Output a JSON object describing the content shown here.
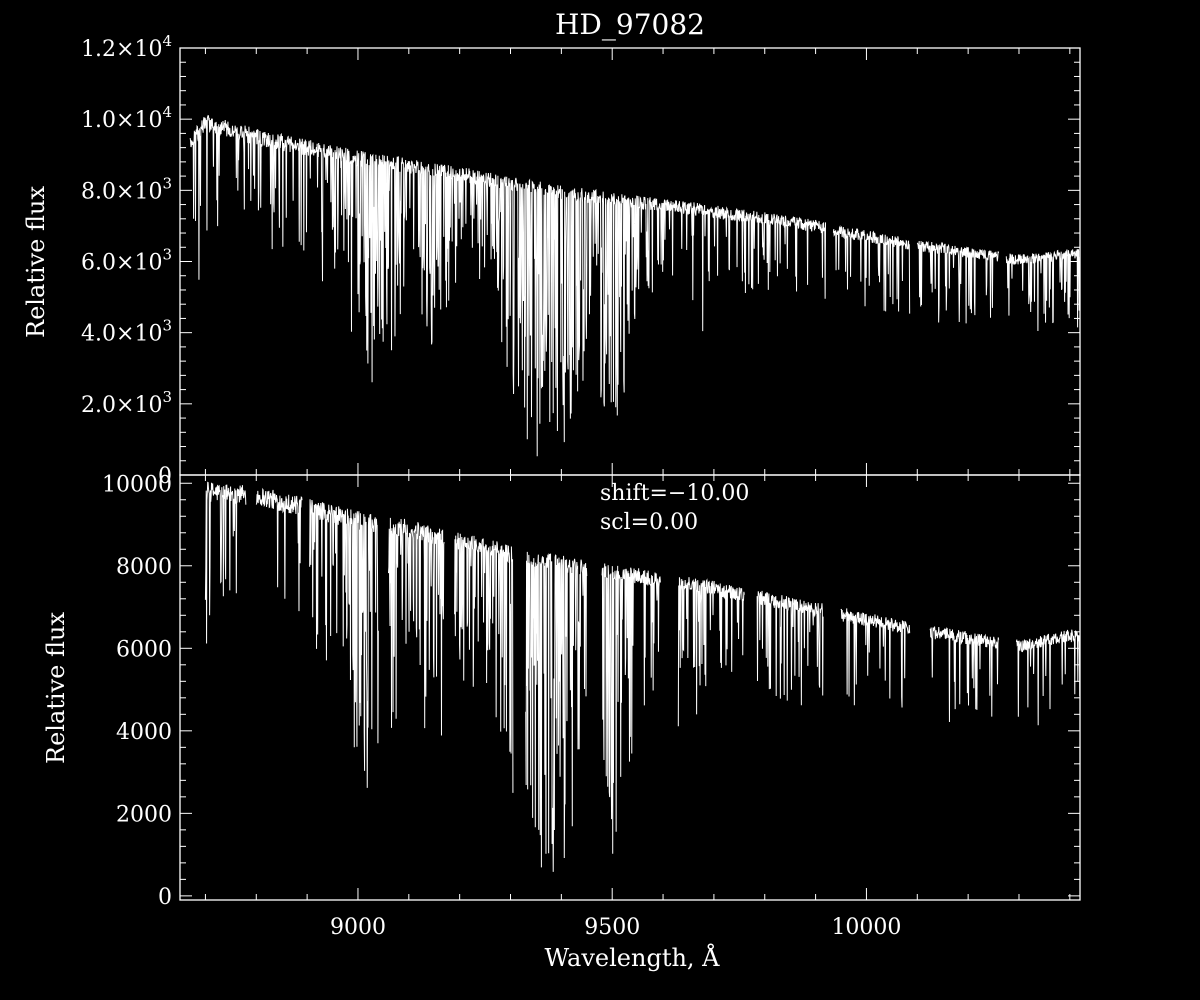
{
  "chart_data": [
    {
      "type": "line",
      "panel": "top",
      "title": "HD_97082",
      "ylabel": "Relative flux",
      "xlim": [
        8650,
        10420
      ],
      "ylim": [
        0,
        12000
      ],
      "yticks": [
        0,
        2000,
        4000,
        6000,
        8000,
        10000,
        12000
      ],
      "ytick_labels": [
        {
          "mant": "0",
          "exp": ""
        },
        {
          "mant": "2.0×10",
          "exp": "3"
        },
        {
          "mant": "4.0×10",
          "exp": "3"
        },
        {
          "mant": "6.0×10",
          "exp": "3"
        },
        {
          "mant": "8.0×10",
          "exp": "3"
        },
        {
          "mant": "1.0×10",
          "exp": "4"
        },
        {
          "mant": "1.2×10",
          "exp": "4"
        }
      ],
      "continuum": {
        "x": [
          8670,
          8700,
          8800,
          8900,
          9000,
          9100,
          9200,
          9300,
          9400,
          9500,
          9600,
          9700,
          9800,
          9900,
          10000,
          10100,
          10200,
          10300,
          10400
        ],
        "y": [
          9300,
          9900,
          9500,
          9200,
          8900,
          8700,
          8450,
          8200,
          7950,
          7750,
          7600,
          7400,
          7200,
          7000,
          6700,
          6450,
          6250,
          6050,
          6200
        ]
      },
      "gaps": [
        [
          9920,
          9935
        ],
        [
          10085,
          10100
        ],
        [
          10260,
          10275
        ]
      ],
      "absorption_bands": [
        {
          "center": 9370,
          "width": 120,
          "depth": 0.97
        },
        {
          "center": 9500,
          "width": 60,
          "depth": 0.9
        },
        {
          "center": 9030,
          "width": 80,
          "depth": 0.75
        },
        {
          "center": 9150,
          "width": 60,
          "depth": 0.6
        }
      ]
    },
    {
      "type": "line",
      "panel": "bottom",
      "ylabel": "Relative flux",
      "xlabel": "Wavelength, Å",
      "xlim": [
        8650,
        10420
      ],
      "ylim": [
        -100,
        10200
      ],
      "xticks": [
        9000,
        9500,
        10000
      ],
      "xtick_labels": [
        "9000",
        "9500",
        "10000"
      ],
      "yticks": [
        0,
        2000,
        4000,
        6000,
        8000,
        10000
      ],
      "ytick_labels": [
        "0",
        "2000",
        "4000",
        "6000",
        "8000",
        "10000"
      ],
      "annotations": [
        "shift=−10.00",
        "scl=0.00"
      ],
      "continuum": {
        "x": [
          8700,
          8800,
          8900,
          9000,
          9100,
          9200,
          9300,
          9400,
          9500,
          9600,
          9700,
          9800,
          9900,
          10000,
          10100,
          10200,
          10300,
          10400
        ],
        "y": [
          9800,
          9700,
          9400,
          9100,
          8900,
          8600,
          8300,
          8050,
          7850,
          7650,
          7450,
          7200,
          6950,
          6700,
          6450,
          6250,
          6050,
          6300
        ]
      },
      "segments": [
        [
          8700,
          8780
        ],
        [
          8800,
          8890
        ],
        [
          8905,
          9040
        ],
        [
          9060,
          9170
        ],
        [
          9190,
          9305
        ],
        [
          9330,
          9450
        ],
        [
          9480,
          9595
        ],
        [
          9630,
          9760
        ],
        [
          9785,
          9915
        ],
        [
          9950,
          10085
        ],
        [
          10125,
          10260
        ],
        [
          10295,
          10420
        ]
      ],
      "absorption_bands": [
        {
          "center": 9370,
          "width": 120,
          "depth": 0.97
        },
        {
          "center": 9500,
          "width": 60,
          "depth": 0.9
        },
        {
          "center": 9030,
          "width": 80,
          "depth": 0.75
        },
        {
          "center": 9150,
          "width": 60,
          "depth": 0.6
        }
      ]
    }
  ]
}
